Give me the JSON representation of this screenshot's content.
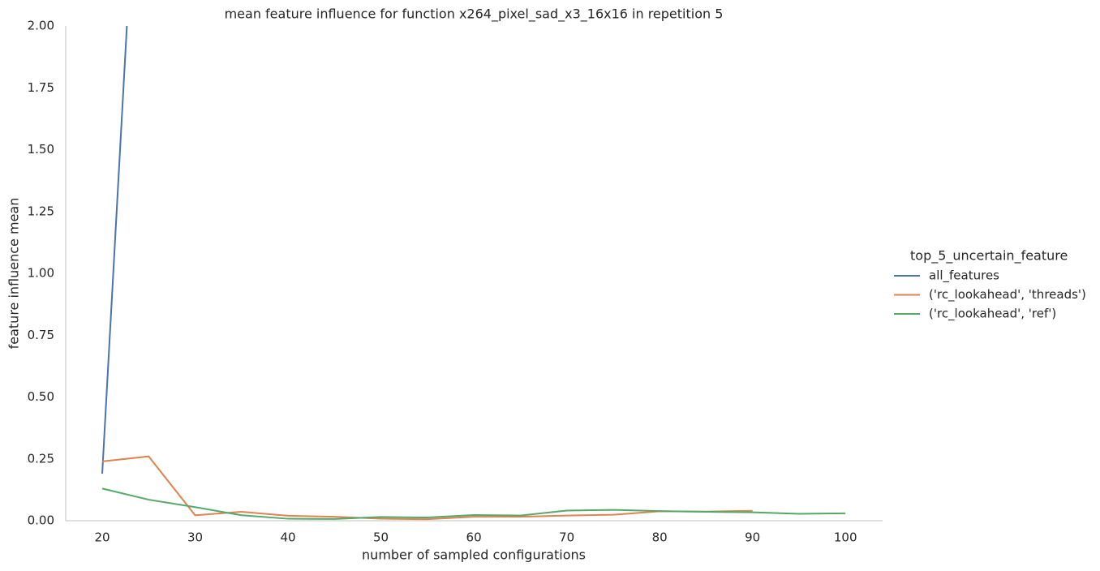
{
  "chart_data": {
    "type": "line",
    "title": "mean feature influence for function x264_pixel_sad_x3_16x16 in repetition 5",
    "xlabel": "number of sampled configurations",
    "ylabel": "feature influence mean",
    "legend_title": "top_5_uncertain_feature",
    "legend_position": "right",
    "grid": false,
    "x": [
      20,
      25,
      30,
      35,
      40,
      45,
      50,
      55,
      60,
      65,
      70,
      75,
      80,
      85,
      90,
      95,
      100
    ],
    "series": [
      {
        "name": "all_features",
        "color": "#4c72b0",
        "values": [
          0.19,
          3.6,
          null,
          null,
          null,
          null,
          null,
          null,
          null,
          null,
          null,
          null,
          null,
          null,
          null,
          null,
          null
        ]
      },
      {
        "name": "('rc_lookahead', 'threads')",
        "color": "#dd8452",
        "values": [
          0.24,
          0.26,
          0.022,
          0.036,
          0.02,
          0.016,
          0.008,
          0.006,
          0.016,
          0.016,
          0.021,
          0.024,
          0.038,
          0.037,
          0.04,
          null,
          null
        ]
      },
      {
        "name": "('rc_lookahead', 'ref')",
        "color": "#55a868",
        "values": [
          0.13,
          0.085,
          0.055,
          0.022,
          0.008,
          0.007,
          0.015,
          0.013,
          0.023,
          0.021,
          0.041,
          0.044,
          0.039,
          0.036,
          0.034,
          0.028,
          0.03
        ]
      }
    ],
    "xlim": [
      16.07,
      104.0
    ],
    "ylim": [
      0,
      2
    ],
    "xticks": [
      20,
      30,
      40,
      50,
      60,
      70,
      80,
      90,
      100
    ],
    "yticks": [
      {
        "value": 0,
        "label": "0.00"
      },
      {
        "value": 0.25,
        "label": "0.25"
      },
      {
        "value": 0.5,
        "label": "0.50"
      },
      {
        "value": 0.75,
        "label": "0.75"
      },
      {
        "value": 1,
        "label": "1.00"
      },
      {
        "value": 1.25,
        "label": "1.25"
      },
      {
        "value": 1.5,
        "label": "1.50"
      },
      {
        "value": 1.75,
        "label": "1.75"
      },
      {
        "value": 2,
        "label": "2.00"
      }
    ]
  }
}
